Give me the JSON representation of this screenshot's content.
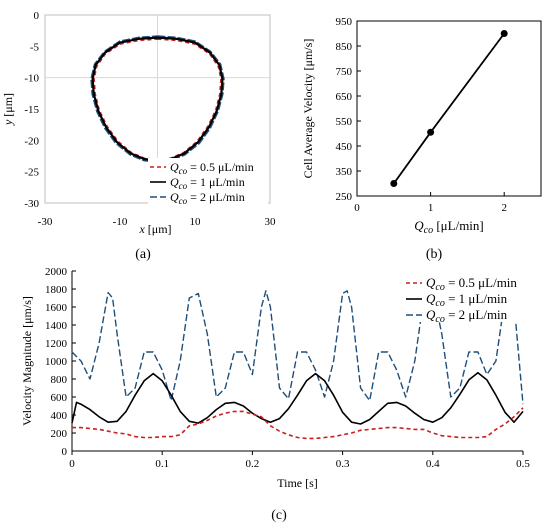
{
  "panel_labels": {
    "a": "(a)",
    "b": "(b)",
    "c": "(c)"
  },
  "legend_text": {
    "prefix_q": "Q",
    "prefix_sub": "co",
    "labels": [
      "= 0.5 μL/min",
      "= 1 μL/min",
      "= 2 μL/min"
    ]
  },
  "colors": {
    "s1": "#cc1f1f",
    "s2": "#000000",
    "s3": "#1f4e79",
    "blue_fill": "#244f7a",
    "grid": "#d9d9d9",
    "axis": "#000000"
  },
  "chart_data": [
    {
      "id": "a",
      "type": "line",
      "title": "",
      "xlabel_var": "x",
      "xlabel_unit": " [μm]",
      "ylabel_var": "y",
      "ylabel_unit": " [μm]",
      "xlim": [
        -30,
        30
      ],
      "ylim": [
        -30,
        0
      ],
      "xticks": [
        "-30",
        "-10",
        "10",
        "30"
      ],
      "xtick_values": [
        -30,
        -10,
        10,
        30
      ],
      "yticks": [
        "0",
        "-5",
        "-10",
        "-15",
        "-20",
        "-25",
        "-30"
      ],
      "ytick_values": [
        0,
        -5,
        -10,
        -15,
        -20,
        -25,
        -30
      ],
      "series": [
        {
          "name": "Q_co = 0.5 μL/min",
          "values": [
            [
              0,
              -3.8
            ],
            [
              5,
              -4
            ],
            [
              10,
              -4.6
            ],
            [
              14,
              -6.2
            ],
            [
              16.3,
              -8.2
            ],
            [
              17,
              -10.2
            ],
            [
              16.7,
              -12.6
            ],
            [
              15.6,
              -15.2
            ],
            [
              13.5,
              -17.8
            ],
            [
              10.6,
              -20.2
            ],
            [
              7,
              -22
            ],
            [
              3.5,
              -22.9
            ],
            [
              0,
              -23.1
            ],
            [
              -3.5,
              -22.9
            ],
            [
              -7,
              -22
            ],
            [
              -10.6,
              -20.2
            ],
            [
              -13.5,
              -17.8
            ],
            [
              -15.6,
              -15.2
            ],
            [
              -16.7,
              -12.6
            ],
            [
              -17,
              -10.2
            ],
            [
              -16.3,
              -8.2
            ],
            [
              -14,
              -6.2
            ],
            [
              -10,
              -4.6
            ],
            [
              -5,
              -4
            ],
            [
              0,
              -3.8
            ]
          ]
        },
        {
          "name": "Q_co = 1 μL/min",
          "values": [
            [
              0,
              -3.6
            ],
            [
              5,
              -3.8
            ],
            [
              10,
              -4.4
            ],
            [
              14,
              -6
            ],
            [
              16.5,
              -8
            ],
            [
              17.3,
              -10.2
            ],
            [
              17,
              -12.6
            ],
            [
              15.8,
              -15.3
            ],
            [
              13.7,
              -17.9
            ],
            [
              10.8,
              -20.3
            ],
            [
              7.1,
              -22.1
            ],
            [
              3.5,
              -23
            ],
            [
              0,
              -23.2
            ],
            [
              -3.5,
              -23
            ],
            [
              -7.1,
              -22.1
            ],
            [
              -10.8,
              -20.3
            ],
            [
              -13.7,
              -17.9
            ],
            [
              -15.8,
              -15.3
            ],
            [
              -17,
              -12.6
            ],
            [
              -17.3,
              -10.2
            ],
            [
              -16.5,
              -8
            ],
            [
              -14,
              -6
            ],
            [
              -10,
              -4.4
            ],
            [
              -5,
              -3.8
            ],
            [
              0,
              -3.6
            ]
          ]
        },
        {
          "name": "Q_co = 2 μL/min",
          "values": [
            [
              0,
              -3.5
            ],
            [
              5,
              -3.7
            ],
            [
              10,
              -4.3
            ],
            [
              14,
              -5.9
            ],
            [
              16.6,
              -7.9
            ],
            [
              17.5,
              -10.2
            ],
            [
              17.2,
              -12.6
            ],
            [
              16,
              -15.3
            ],
            [
              13.9,
              -18
            ],
            [
              11,
              -20.4
            ],
            [
              7.2,
              -22.2
            ],
            [
              3.6,
              -23.1
            ],
            [
              0,
              -23.3
            ],
            [
              -3.6,
              -23.1
            ],
            [
              -7.2,
              -22.2
            ],
            [
              -11,
              -20.4
            ],
            [
              -13.9,
              -18
            ],
            [
              -16,
              -15.3
            ],
            [
              -17.2,
              -12.6
            ],
            [
              -17.5,
              -10.2
            ],
            [
              -16.6,
              -7.9
            ],
            [
              -14,
              -5.9
            ],
            [
              -10,
              -4.3
            ],
            [
              -5,
              -3.7
            ],
            [
              0,
              -3.5
            ]
          ]
        }
      ],
      "legend": "bottom-right",
      "grid": "center crosshair"
    },
    {
      "id": "b",
      "type": "line",
      "title": "",
      "xlabel_var": "Q",
      "xlabel_sub": "co",
      "xlabel_unit": " [μL/min]",
      "ylabel": "Cell Average Velocity [μm/s]",
      "xlim": [
        0,
        2.5
      ],
      "ylim": [
        250,
        950
      ],
      "xticks": [
        "0",
        "1",
        "2"
      ],
      "xtick_values": [
        0,
        1,
        2
      ],
      "yticks": [
        "250",
        "350",
        "450",
        "550",
        "650",
        "750",
        "850",
        "950"
      ],
      "ytick_values": [
        250,
        350,
        450,
        550,
        650,
        750,
        850,
        950
      ],
      "x": [
        0.5,
        1,
        2
      ],
      "values": [
        300,
        505,
        900
      ],
      "grid": false
    },
    {
      "id": "c",
      "type": "line",
      "title": "",
      "xlabel": "Time [s]",
      "ylabel": "Velocity Magnitude [μm/s]",
      "xlim": [
        0,
        0.5
      ],
      "ylim": [
        0,
        2000
      ],
      "xticks": [
        "0",
        "0.1",
        "0.2",
        "0.3",
        "0.4",
        "0.5"
      ],
      "xtick_values": [
        0,
        0.1,
        0.2,
        0.3,
        0.4,
        0.5
      ],
      "yticks": [
        "0",
        "200",
        "400",
        "600",
        "800",
        "1000",
        "1200",
        "1400",
        "1600",
        "1800",
        "2000"
      ],
      "ytick_values": [
        0,
        200,
        400,
        600,
        800,
        1000,
        1200,
        1400,
        1600,
        1800,
        2000
      ],
      "series": [
        {
          "name": "Q_co = 0.5 μL/min",
          "x": [
            0,
            0.01,
            0.02,
            0.03,
            0.04,
            0.05,
            0.06,
            0.07,
            0.08,
            0.09,
            0.1,
            0.11,
            0.12,
            0.13,
            0.14,
            0.15,
            0.16,
            0.17,
            0.18,
            0.19,
            0.2,
            0.21,
            0.22,
            0.23,
            0.24,
            0.25,
            0.26,
            0.27,
            0.28,
            0.29,
            0.3,
            0.31,
            0.32,
            0.33,
            0.34,
            0.35,
            0.36,
            0.37,
            0.38,
            0.39,
            0.4,
            0.41,
            0.42,
            0.43,
            0.44,
            0.45,
            0.46,
            0.47,
            0.48,
            0.49,
            0.5
          ],
          "values": [
            260,
            260,
            250,
            240,
            220,
            200,
            190,
            160,
            150,
            150,
            160,
            160,
            180,
            280,
            300,
            340,
            390,
            420,
            440,
            440,
            410,
            380,
            280,
            220,
            180,
            150,
            140,
            140,
            150,
            160,
            180,
            200,
            230,
            240,
            250,
            260,
            260,
            250,
            240,
            240,
            200,
            170,
            160,
            150,
            150,
            150,
            160,
            240,
            300,
            380,
            480
          ]
        },
        {
          "name": "Q_co = 1 μL/min",
          "x": [
            0,
            0.005,
            0.01,
            0.02,
            0.03,
            0.04,
            0.05,
            0.06,
            0.07,
            0.08,
            0.09,
            0.1,
            0.11,
            0.12,
            0.13,
            0.14,
            0.15,
            0.16,
            0.17,
            0.18,
            0.19,
            0.2,
            0.21,
            0.22,
            0.23,
            0.24,
            0.25,
            0.26,
            0.27,
            0.28,
            0.29,
            0.3,
            0.31,
            0.32,
            0.33,
            0.34,
            0.35,
            0.36,
            0.37,
            0.38,
            0.39,
            0.4,
            0.41,
            0.42,
            0.43,
            0.44,
            0.45,
            0.46,
            0.47,
            0.48,
            0.49,
            0.5
          ],
          "values": [
            310,
            540,
            520,
            460,
            380,
            320,
            330,
            440,
            620,
            780,
            860,
            780,
            620,
            440,
            330,
            310,
            370,
            460,
            530,
            540,
            500,
            420,
            360,
            320,
            360,
            470,
            620,
            780,
            860,
            780,
            620,
            430,
            320,
            300,
            350,
            440,
            530,
            540,
            500,
            420,
            350,
            320,
            370,
            480,
            630,
            790,
            870,
            790,
            620,
            430,
            320,
            440
          ]
        },
        {
          "name": "Q_co = 2 μL/min",
          "x": [
            0,
            0.01,
            0.02,
            0.03,
            0.04,
            0.045,
            0.05,
            0.06,
            0.07,
            0.08,
            0.09,
            0.1,
            0.11,
            0.12,
            0.13,
            0.14,
            0.15,
            0.16,
            0.17,
            0.18,
            0.19,
            0.2,
            0.21,
            0.215,
            0.22,
            0.23,
            0.24,
            0.25,
            0.26,
            0.27,
            0.28,
            0.29,
            0.3,
            0.305,
            0.31,
            0.32,
            0.33,
            0.34,
            0.35,
            0.36,
            0.37,
            0.38,
            0.39,
            0.4,
            0.41,
            0.42,
            0.43,
            0.44,
            0.45,
            0.46,
            0.47,
            0.48,
            0.49,
            0.5
          ],
          "values": [
            1100,
            1000,
            800,
            1200,
            1760,
            1700,
            1300,
            600,
            700,
            1100,
            1100,
            900,
            560,
            1000,
            1700,
            1750,
            1300,
            600,
            700,
            1100,
            1100,
            850,
            1600,
            1780,
            1600,
            700,
            580,
            1100,
            1100,
            900,
            600,
            1000,
            1750,
            1780,
            1600,
            700,
            560,
            1100,
            1100,
            900,
            600,
            1000,
            1700,
            1780,
            1300,
            600,
            700,
            1100,
            1100,
            850,
            1000,
            1700,
            1650,
            520
          ]
        }
      ],
      "legend": "top-right",
      "grid": false
    }
  ]
}
